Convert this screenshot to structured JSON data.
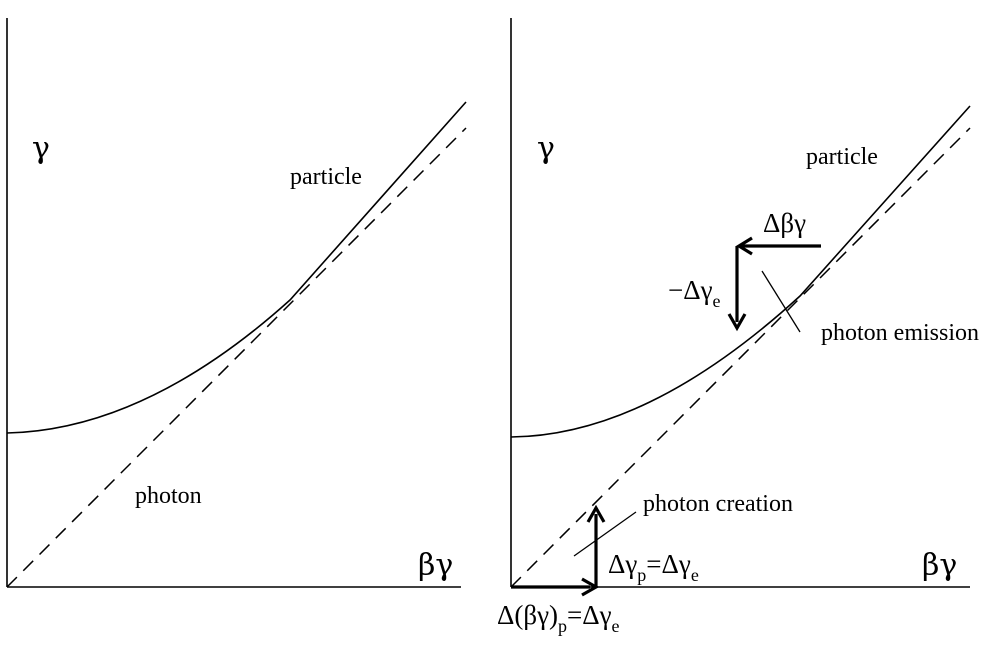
{
  "left_panel": {
    "y_axis_symbol": "γ",
    "x_axis_symbol": "βγ",
    "particle_label": "particle",
    "photon_label": "photon"
  },
  "right_panel": {
    "y_axis_symbol": "γ",
    "x_axis_symbol": "βγ",
    "particle_label": "particle",
    "photon_emission_label": "photon emission",
    "photon_creation_label": "photon creation",
    "emission_momentum_label": "Δβγ",
    "emission_energy_label": {
      "main": "−Δγ",
      "subscript": "e"
    },
    "creation_energy_label": {
      "part1": "Δγ",
      "sub1": "p",
      "part2": "=Δγ",
      "sub2": "e"
    },
    "creation_momentum_label": {
      "part1": "Δ(βγ)",
      "sub1": "p",
      "part2": "=Δγ",
      "sub2": "e"
    }
  }
}
